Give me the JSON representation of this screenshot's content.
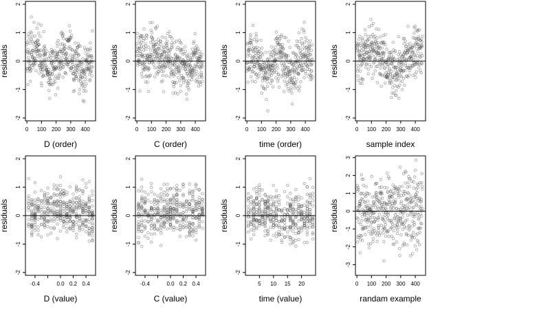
{
  "chart_data": [
    {
      "type": "scatter",
      "title": "",
      "xlabel": "D (order)",
      "ylabel": "residuals",
      "xlim": [
        -10,
        470
      ],
      "ylim": [
        -2.1,
        2.1
      ],
      "xticks": [
        0,
        100,
        200,
        300,
        400
      ],
      "yticks": [
        -2,
        -1,
        0,
        1,
        2
      ],
      "refline_y": 0,
      "n": 450,
      "x_kind": "index",
      "pattern": "d_order"
    },
    {
      "type": "scatter",
      "title": "",
      "xlabel": "C (order)",
      "ylabel": "residuals",
      "xlim": [
        -10,
        470
      ],
      "ylim": [
        -2.1,
        2.1
      ],
      "xticks": [
        0,
        100,
        200,
        300,
        400
      ],
      "yticks": [
        -2,
        -1,
        0,
        1,
        2
      ],
      "refline_y": 0,
      "n": 450,
      "x_kind": "index",
      "pattern": "c_order"
    },
    {
      "type": "scatter",
      "title": "",
      "xlabel": "time (order)",
      "ylabel": "residuals",
      "xlim": [
        -10,
        470
      ],
      "ylim": [
        -2.1,
        2.1
      ],
      "xticks": [
        0,
        100,
        200,
        300,
        400
      ],
      "yticks": [
        -2,
        -1,
        0,
        1,
        2
      ],
      "refline_y": 0,
      "n": 450,
      "x_kind": "index",
      "pattern": "time_order"
    },
    {
      "type": "scatter",
      "title": "",
      "xlabel": "sample index",
      "ylabel": "residuals",
      "xlim": [
        -10,
        470
      ],
      "ylim": [
        -2.1,
        2.1
      ],
      "xticks": [
        0,
        100,
        200,
        300,
        400
      ],
      "yticks": [
        -2,
        -1,
        0,
        1,
        2
      ],
      "refline_y": 0,
      "n": 450,
      "x_kind": "index",
      "pattern": "sample"
    },
    {
      "type": "scatter",
      "title": "",
      "xlabel": "D (value)",
      "ylabel": "residuals",
      "xlim": [
        -0.55,
        0.55
      ],
      "ylim": [
        -2.1,
        2.1
      ],
      "xticks": [
        -0.4,
        -0.2,
        0.0,
        0.2,
        0.4
      ],
      "xticklabels": [
        "-0.4",
        "",
        "0.0",
        "0.2",
        "0.4"
      ],
      "yticks": [
        -2,
        -1,
        0,
        1,
        2
      ],
      "refline_y": 0,
      "n": 450,
      "x_kind": "discrete",
      "x_min": -0.5,
      "x_max": 0.5,
      "x_steps": 21,
      "pattern": "d_value"
    },
    {
      "type": "scatter",
      "title": "",
      "xlabel": "C (value)",
      "ylabel": "residuals",
      "xlim": [
        -0.55,
        0.55
      ],
      "ylim": [
        -2.1,
        2.1
      ],
      "xticks": [
        -0.4,
        -0.2,
        0.0,
        0.2,
        0.4
      ],
      "xticklabels": [
        "-0.4",
        "",
        "0.0",
        "0.2",
        "0.4"
      ],
      "yticks": [
        -2,
        -1,
        0,
        1,
        2
      ],
      "refline_y": 0,
      "n": 450,
      "x_kind": "discrete",
      "x_min": -0.5,
      "x_max": 0.5,
      "x_steps": 21,
      "pattern": "c_value"
    },
    {
      "type": "scatter",
      "title": "",
      "xlabel": "time (value)",
      "ylabel": "residuals",
      "xlim": [
        0,
        25
      ],
      "ylim": [
        -2.1,
        2.1
      ],
      "xticks": [
        5,
        10,
        15,
        20
      ],
      "yticks": [
        -2,
        -1,
        0,
        1,
        2
      ],
      "refline_y": 0,
      "n": 450,
      "x_kind": "discrete",
      "x_min": 1,
      "x_max": 24,
      "x_steps": 24,
      "pattern": "time_value"
    },
    {
      "type": "scatter",
      "title": "",
      "xlabel": "randam example",
      "ylabel": "residuals",
      "xlim": [
        -10,
        470
      ],
      "ylim": [
        -3.6,
        3.1
      ],
      "xticks": [
        0,
        100,
        200,
        300,
        400
      ],
      "yticks": [
        -3,
        -2,
        -1,
        0,
        1,
        2,
        3
      ],
      "refline_y": 0,
      "n": 450,
      "x_kind": "index",
      "pattern": "random"
    }
  ]
}
